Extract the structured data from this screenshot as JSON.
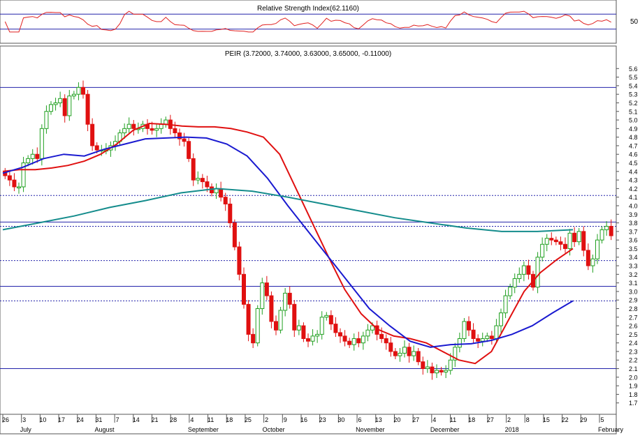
{
  "rsi_panel": {
    "title": "Relative Strength Index(62.1160)",
    "level_label": "50",
    "overbought": 70,
    "oversold": 30,
    "ylim": [
      0,
      100
    ]
  },
  "price_panel": {
    "title": "PEIR (3.72000, 3.74000, 3.63000, 3.65000, -0.11000)"
  },
  "chart_data": {
    "type": "candlestick",
    "ylim": [
      1.6,
      5.7
    ],
    "y_ticks": [
      "1.7",
      "1.8",
      "1.9",
      "2.0",
      "2.1",
      "2.2",
      "2.3",
      "2.4",
      "2.5",
      "2.6",
      "2.7",
      "2.8",
      "2.9",
      "3.0",
      "3.1",
      "3.2",
      "3.3",
      "3.4",
      "3.5",
      "3.6",
      "3.7",
      "3.8",
      "3.9",
      "4.0",
      "4.1",
      "4.2",
      "4.3",
      "4.4",
      "4.5",
      "4.6",
      "4.7",
      "4.8",
      "4.9",
      "5.0",
      "5.1",
      "5.2",
      "5.3",
      "5.4",
      "5.5",
      "5.6"
    ],
    "x_day_ticks": [
      "26",
      "3",
      "10",
      "17",
      "24",
      "31",
      "7",
      "14",
      "21",
      "28",
      "4",
      "11",
      "18",
      "25",
      "2",
      "9",
      "16",
      "23",
      "30",
      "6",
      "13",
      "20",
      "27",
      "4",
      "11",
      "18",
      "27",
      "2",
      "8",
      "15",
      "22",
      "29",
      "5"
    ],
    "x_month_labels": [
      "July",
      "August",
      "September",
      "October",
      "November",
      "December",
      "2018",
      "February"
    ],
    "horizontal_levels": [
      5.38,
      4.12,
      3.81,
      3.76,
      3.36,
      3.06,
      2.89,
      2.1
    ],
    "dotted_levels": [
      4.12,
      3.76,
      3.36,
      2.89
    ],
    "closes": [
      4.35,
      4.3,
      4.22,
      4.22,
      4.5,
      4.55,
      4.6,
      4.55,
      4.9,
      5.1,
      5.18,
      5.2,
      5.25,
      5.05,
      5.28,
      5.3,
      5.38,
      5.3,
      4.95,
      4.7,
      4.65,
      4.65,
      4.65,
      4.7,
      4.75,
      4.85,
      4.9,
      4.95,
      4.9,
      4.9,
      4.95,
      4.9,
      4.88,
      4.9,
      4.95,
      5.0,
      4.9,
      4.85,
      4.78,
      4.75,
      4.55,
      4.3,
      4.32,
      4.28,
      4.22,
      4.15,
      4.2,
      4.1,
      4.02,
      3.8,
      3.52,
      3.2,
      2.85,
      2.5,
      2.4,
      2.8,
      3.1,
      2.95,
      2.65,
      2.55,
      2.78,
      2.98,
      2.85,
      2.55,
      2.6,
      2.45,
      2.42,
      2.48,
      2.5,
      2.7,
      2.72,
      2.62,
      2.52,
      2.48,
      2.42,
      2.38,
      2.45,
      2.4,
      2.48,
      2.55,
      2.6,
      2.5,
      2.45,
      2.4,
      2.3,
      2.25,
      2.28,
      2.35,
      2.25,
      2.3,
      2.18,
      2.1,
      2.12,
      2.05,
      2.08,
      2.06,
      2.08,
      2.2,
      2.35,
      2.45,
      2.65,
      2.55,
      2.45,
      2.42,
      2.45,
      2.48,
      2.45,
      2.6,
      2.75,
      2.95,
      3.05,
      3.15,
      3.2,
      3.3,
      3.2,
      3.05,
      3.4,
      3.55,
      3.62,
      3.6,
      3.58,
      3.55,
      3.5,
      3.68,
      3.58,
      3.7,
      3.48,
      3.3,
      3.38,
      3.6,
      3.72,
      3.76,
      3.65
    ],
    "series": [
      {
        "name": "",
        "color": "#e01010",
        "values": [
          4.4,
          4.42,
          4.42,
          4.44,
          4.47,
          4.52,
          4.6,
          4.72,
          4.88,
          4.96,
          4.95,
          4.93,
          4.92,
          4.92,
          4.9,
          4.86,
          4.8,
          4.6,
          4.2,
          3.8,
          3.4,
          3.02,
          2.74,
          2.56,
          2.48,
          2.45,
          2.4,
          2.3,
          2.2,
          2.16,
          2.3,
          2.65,
          3.0,
          3.22,
          3.37,
          3.5
        ]
      },
      {
        "name": "",
        "color": "#1a1ad0",
        "values": [
          4.38,
          4.45,
          4.55,
          4.6,
          4.58,
          4.66,
          4.72,
          4.78,
          4.79,
          4.8,
          4.79,
          4.72,
          4.58,
          4.32,
          4.0,
          3.7,
          3.4,
          3.1,
          2.8,
          2.6,
          2.42,
          2.35,
          2.38,
          2.39,
          2.43,
          2.5,
          2.6,
          2.75,
          2.89
        ]
      },
      {
        "name": "",
        "color": "#148c8c",
        "values": [
          3.72,
          3.8,
          3.88,
          3.98,
          4.06,
          4.15,
          4.2,
          4.17,
          4.1,
          4.02,
          3.94,
          3.86,
          3.8,
          3.74,
          3.7,
          3.7,
          3.72
        ]
      }
    ]
  }
}
